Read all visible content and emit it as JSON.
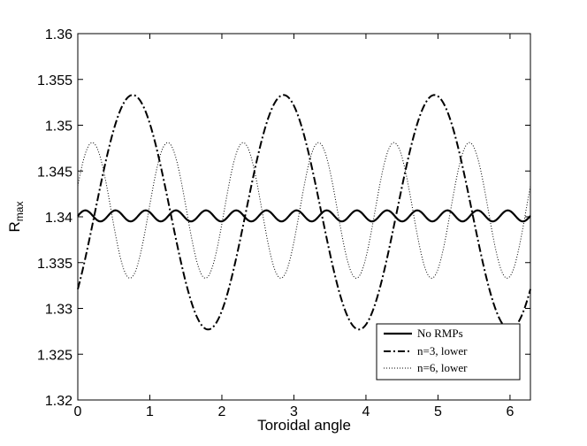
{
  "chart_data": {
    "type": "line",
    "xlabel": "Toroidal angle",
    "ylabel_main": "R",
    "ylabel_sub": "max",
    "xlim": [
      0,
      6.2832
    ],
    "ylim": [
      1.32,
      1.36
    ],
    "xticks": [
      0,
      1,
      2,
      3,
      4,
      5,
      6
    ],
    "xtick_labels": [
      "0",
      "1",
      "2",
      "3",
      "4",
      "5",
      "6"
    ],
    "yticks": [
      1.32,
      1.325,
      1.33,
      1.335,
      1.34,
      1.345,
      1.35,
      1.355,
      1.36
    ],
    "ytick_labels": [
      "1.32",
      "1.325",
      "1.33",
      "1.335",
      "1.34",
      "1.345",
      "1.35",
      "1.355",
      "1.36"
    ],
    "grid": false,
    "legend_position": "bottom-right",
    "series": [
      {
        "name": "No RMPs",
        "style": "solid",
        "color": "#000000",
        "model": {
          "offset": 1.3401,
          "amplitude": 0.0006,
          "harmonic": 15,
          "phase_deg": 0
        },
        "approx_min": 1.3395,
        "approx_max": 1.3407
      },
      {
        "name": "n=3, lower",
        "style": "dashdot",
        "color": "#000000",
        "model": {
          "offset": 1.3405,
          "amplitude": 0.0128,
          "harmonic": 3,
          "phase_deg": -41
        },
        "approx_min": 1.3278,
        "approx_max": 1.3533,
        "maxima_x": [
          0.69,
          2.8,
          4.89
        ],
        "minima_x": [
          1.74,
          3.84,
          5.93
        ]
      },
      {
        "name": "n=6, lower",
        "style": "dotted",
        "color": "#000000",
        "model": {
          "offset": 1.3407,
          "amplitude": 0.0074,
          "harmonic": 6,
          "phase_deg": 21
        },
        "approx_min": 1.3333,
        "approx_max": 1.3481,
        "maxima_x": [
          0.2,
          1.25,
          2.3,
          3.34,
          4.39,
          5.44
        ],
        "minima_x": [
          0.72,
          1.77,
          2.82,
          3.86,
          4.91,
          5.96
        ]
      }
    ]
  }
}
